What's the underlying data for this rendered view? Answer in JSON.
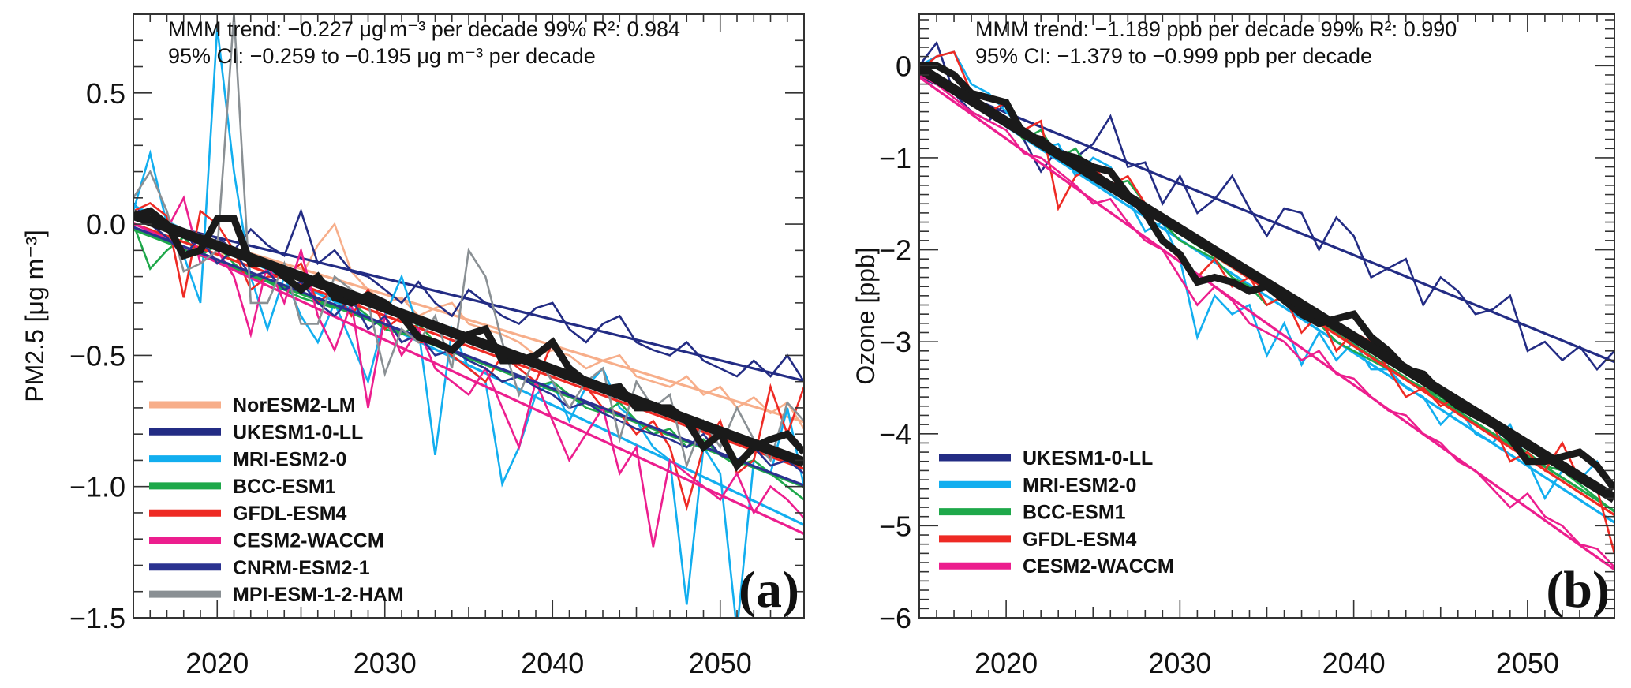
{
  "chart_data": [
    {
      "type": "line",
      "panel_label": "(a)",
      "ylabel": "PM2.5 [μg m⁻³]",
      "xlabel": "",
      "xlim": [
        2015,
        2055
      ],
      "ylim": [
        -1.5,
        0.8
      ],
      "xticks": [
        2020,
        2030,
        2040,
        2050
      ],
      "xtick_labels": [
        "2020",
        "2030",
        "2040",
        "2050"
      ],
      "yticks": [
        0.5,
        0.0,
        -0.5,
        -1.0,
        -1.5
      ],
      "ytick_labels": [
        "0.5",
        "0.0",
        "−0.5",
        "−1.0",
        "−1.5"
      ],
      "legend_position": "bottom-left",
      "annotation": {
        "trend_label": "MMM  trend:",
        "trend": "−0.227",
        "unit": "μg m⁻³",
        "per_decade": "per decade",
        "significance": "99%",
        "r2_label": "R²:",
        "r2": "0.984",
        "ci_label": "95% CI:",
        "ci_low": "−0.259",
        "to": "to",
        "ci_high": "−0.195"
      },
      "start_year": 2015,
      "series": [
        {
          "name": "NorESM2-LM",
          "color": "#F7AE8A",
          "values": [
            0.05,
            0.03,
            -0.02,
            -0.1,
            -0.08,
            -0.12,
            -0.1,
            -0.15,
            -0.13,
            -0.18,
            -0.2,
            -0.08,
            0.0,
            -0.18,
            -0.25,
            -0.3,
            -0.28,
            -0.35,
            -0.32,
            -0.3,
            -0.38,
            -0.4,
            -0.42,
            -0.45,
            -0.5,
            -0.48,
            -0.5,
            -0.55,
            -0.52,
            -0.5,
            -0.58,
            -0.6,
            -0.62,
            -0.58,
            -0.65,
            -0.62,
            -0.7,
            -0.66,
            -0.72,
            -0.68,
            -0.78
          ]
        },
        {
          "name": "UKESM1-0-LL",
          "color": "#232C84",
          "values": [
            0.08,
            0.0,
            -0.05,
            -0.02,
            -0.12,
            -0.05,
            -0.1,
            -0.02,
            -0.08,
            -0.12,
            0.05,
            -0.15,
            -0.1,
            -0.18,
            -0.2,
            -0.25,
            -0.3,
            -0.22,
            -0.3,
            -0.35,
            -0.25,
            -0.3,
            -0.35,
            -0.38,
            -0.32,
            -0.3,
            -0.4,
            -0.45,
            -0.38,
            -0.35,
            -0.45,
            -0.48,
            -0.5,
            -0.45,
            -0.52,
            -0.55,
            -0.58,
            -0.52,
            -0.58,
            -0.5,
            -0.6
          ]
        },
        {
          "name": "MRI-ESM2-0",
          "color": "#12AEEF",
          "values": [
            0.05,
            0.27,
            0.0,
            -0.12,
            -0.3,
            0.75,
            0.2,
            -0.2,
            -0.4,
            -0.2,
            -0.35,
            -0.45,
            -0.3,
            -0.45,
            -0.6,
            -0.35,
            -0.2,
            -0.4,
            -0.88,
            -0.4,
            -0.55,
            -0.6,
            -0.99,
            -0.85,
            -0.65,
            -0.6,
            -0.75,
            -0.62,
            -0.55,
            -0.7,
            -0.75,
            -0.85,
            -0.9,
            -1.45,
            -0.85,
            -0.95,
            -1.55,
            -0.9,
            -0.95,
            -0.7,
            -1.0
          ]
        },
        {
          "name": "BCC-ESM1",
          "color": "#1EA84A",
          "values": [
            0.0,
            -0.17,
            -0.1,
            -0.05,
            -0.12,
            -0.08,
            -0.15,
            -0.2,
            -0.22,
            -0.25,
            -0.28,
            -0.3,
            -0.32,
            -0.3,
            -0.35,
            -0.4,
            -0.42,
            -0.38,
            -0.45,
            -0.48,
            -0.52,
            -0.55,
            -0.6,
            -0.58,
            -0.62,
            -0.6,
            -0.65,
            -0.7,
            -0.72,
            -0.68,
            -0.75,
            -0.8,
            -0.78,
            -0.85,
            -0.82,
            -0.88,
            -0.92,
            -0.9,
            -0.95,
            -1.0,
            -1.05
          ]
        },
        {
          "name": "GFDL-ESM4",
          "color": "#EE2A24",
          "values": [
            0.05,
            0.08,
            0.03,
            -0.28,
            0.05,
            0.0,
            -0.1,
            -0.25,
            -0.2,
            -0.2,
            -0.15,
            -0.3,
            -0.25,
            -0.35,
            -0.25,
            -0.4,
            -0.35,
            -0.45,
            -0.45,
            -0.5,
            -0.55,
            -0.6,
            -0.5,
            -0.55,
            -0.6,
            -0.45,
            -0.55,
            -0.62,
            -0.7,
            -0.72,
            -0.8,
            -0.75,
            -0.85,
            -1.08,
            -0.85,
            -0.75,
            -0.95,
            -0.9,
            -0.62,
            -0.8,
            -0.62
          ]
        },
        {
          "name": "CESM2-WACCM",
          "color": "#EC1E8E",
          "values": [
            0.03,
            0.05,
            -0.02,
            0.1,
            -0.15,
            -0.1,
            -0.2,
            -0.42,
            -0.15,
            -0.3,
            -0.1,
            -0.35,
            -0.48,
            -0.3,
            -0.7,
            -0.35,
            -0.5,
            -0.4,
            -0.55,
            -0.6,
            -0.65,
            -0.55,
            -0.7,
            -0.85,
            -0.6,
            -0.75,
            -0.9,
            -0.8,
            -0.7,
            -0.95,
            -0.85,
            -1.23,
            -0.9,
            -0.95,
            -1.0,
            -1.05,
            -0.95,
            -1.1,
            -1.0,
            -1.05,
            -1.12
          ]
        },
        {
          "name": "CNRM-ESM2-1",
          "color": "#2A3290",
          "values": [
            0.02,
            0.0,
            -0.05,
            -0.12,
            -0.05,
            -0.15,
            -0.1,
            -0.2,
            -0.18,
            -0.25,
            -0.22,
            -0.3,
            -0.35,
            -0.28,
            -0.4,
            -0.35,
            -0.45,
            -0.42,
            -0.5,
            -0.48,
            -0.52,
            -0.55,
            -0.6,
            -0.58,
            -0.62,
            -0.65,
            -0.7,
            -0.68,
            -0.72,
            -0.75,
            -0.78,
            -0.8,
            -0.82,
            -0.85,
            -0.8,
            -0.88,
            -0.9,
            -0.85,
            -0.92,
            -0.9,
            -0.95
          ]
        },
        {
          "name": "MPI-ESM-1-2-HAM",
          "color": "#8A9094",
          "values": [
            0.1,
            0.2,
            0.05,
            -0.18,
            -0.15,
            -0.1,
            0.8,
            -0.3,
            -0.3,
            -0.15,
            -0.38,
            -0.38,
            -0.2,
            -0.25,
            -0.3,
            -0.57,
            -0.4,
            -0.45,
            -0.35,
            -0.55,
            -0.1,
            -0.2,
            -0.45,
            -0.65,
            -0.5,
            -0.6,
            -0.7,
            -0.6,
            -0.55,
            -0.82,
            -0.6,
            -0.7,
            -0.65,
            -0.92,
            -0.75,
            -0.85,
            -0.7,
            -0.82,
            -0.9,
            -0.68,
            -0.75
          ]
        }
      ],
      "mmm": {
        "name": "MMM",
        "color": "#1A1A1A",
        "values": [
          0.03,
          0.05,
          0.0,
          -0.12,
          -0.1,
          0.02,
          0.02,
          -0.15,
          -0.15,
          -0.2,
          -0.25,
          -0.2,
          -0.28,
          -0.3,
          -0.27,
          -0.3,
          -0.35,
          -0.43,
          -0.45,
          -0.48,
          -0.42,
          -0.4,
          -0.52,
          -0.52,
          -0.5,
          -0.45,
          -0.55,
          -0.6,
          -0.63,
          -0.62,
          -0.7,
          -0.7,
          -0.7,
          -0.75,
          -0.85,
          -0.8,
          -0.92,
          -0.85,
          -0.82,
          -0.8,
          -0.87
        ]
      }
    },
    {
      "type": "line",
      "panel_label": "(b)",
      "ylabel": "Ozone [ppb]",
      "xlabel": "",
      "xlim": [
        2015,
        2055
      ],
      "ylim": [
        -6,
        0.56
      ],
      "xticks": [
        2020,
        2030,
        2040,
        2050
      ],
      "xtick_labels": [
        "2020",
        "2030",
        "2040",
        "2050"
      ],
      "yticks": [
        0,
        -1,
        -2,
        -3,
        -4,
        -5,
        -6
      ],
      "ytick_labels": [
        "0",
        "−1",
        "−2",
        "−3",
        "−4",
        "−5",
        "−6"
      ],
      "legend_position": "bottom-left",
      "annotation": {
        "trend_label": "MMM  trend:",
        "trend": "−1.189",
        "unit": "ppb",
        "per_decade": "per decade",
        "significance": "99%",
        "r2_label": "R²:",
        "r2": "0.990",
        "ci_label": "95% CI:",
        "ci_low": "−1.379",
        "to": "to",
        "ci_high": "−0.999"
      },
      "start_year": 2015,
      "series": [
        {
          "name": "UKESM1-0-LL",
          "color": "#232C84",
          "values": [
            0,
            0.25,
            -0.3,
            -0.5,
            -0.6,
            -0.4,
            -0.8,
            -1.15,
            -0.9,
            -1.0,
            -0.85,
            -0.55,
            -1.1,
            -1.05,
            -1.5,
            -1.2,
            -1.6,
            -1.45,
            -1.2,
            -1.55,
            -1.85,
            -1.55,
            -1.6,
            -2.0,
            -1.65,
            -1.85,
            -2.3,
            -2.2,
            -2.1,
            -2.6,
            -2.3,
            -2.45,
            -2.7,
            -2.65,
            -2.5,
            -3.1,
            -3.0,
            -3.2,
            -3.05,
            -3.3,
            -3.1
          ]
        },
        {
          "name": "MRI-ESM2-0",
          "color": "#12AEEF",
          "values": [
            0,
            0.1,
            0.15,
            -0.2,
            -0.3,
            -0.5,
            -0.7,
            -0.9,
            -0.85,
            -1.2,
            -1.0,
            -1.1,
            -1.45,
            -1.8,
            -1.7,
            -2.1,
            -2.95,
            -2.5,
            -2.7,
            -2.6,
            -3.15,
            -2.8,
            -3.25,
            -2.9,
            -3.2,
            -3.0,
            -3.3,
            -3.3,
            -3.5,
            -3.6,
            -3.9,
            -3.7,
            -4.0,
            -4.1,
            -3.9,
            -4.3,
            -4.7,
            -4.4,
            -4.5,
            -4.3,
            -4.6
          ]
        },
        {
          "name": "BCC-ESM1",
          "color": "#1EA84A",
          "values": [
            -0.1,
            -0.2,
            -0.3,
            -0.4,
            -0.5,
            -0.6,
            -0.8,
            -0.7,
            -1.0,
            -0.9,
            -1.2,
            -1.3,
            -1.25,
            -1.5,
            -1.7,
            -1.9,
            -2.0,
            -2.1,
            -2.3,
            -2.4,
            -2.6,
            -2.5,
            -2.7,
            -2.8,
            -3.0,
            -3.1,
            -3.2,
            -3.3,
            -3.4,
            -3.5,
            -3.6,
            -3.75,
            -3.9,
            -4.0,
            -4.1,
            -4.2,
            -4.35,
            -4.4,
            -4.55,
            -4.7,
            -4.85
          ]
        },
        {
          "name": "GFDL-ESM4",
          "color": "#EE2A24",
          "values": [
            -0.05,
            0.1,
            0.15,
            -0.3,
            -0.5,
            -0.4,
            -0.7,
            -0.6,
            -1.55,
            -1.2,
            -1.1,
            -1.3,
            -1.2,
            -1.5,
            -1.9,
            -2.1,
            -2.3,
            -2.1,
            -2.4,
            -2.3,
            -2.6,
            -2.5,
            -2.9,
            -2.7,
            -3.1,
            -2.9,
            -3.0,
            -3.3,
            -3.6,
            -3.5,
            -3.7,
            -3.6,
            -3.8,
            -3.9,
            -4.3,
            -4.2,
            -4.4,
            -4.1,
            -4.5,
            -4.6,
            -5.3
          ]
        },
        {
          "name": "CESM2-WACCM",
          "color": "#EC1E8E",
          "values": [
            -0.1,
            -0.2,
            -0.35,
            -0.5,
            -0.6,
            -0.7,
            -0.95,
            -1.0,
            -1.15,
            -1.3,
            -1.5,
            -1.45,
            -1.7,
            -1.9,
            -2.0,
            -2.3,
            -2.6,
            -2.4,
            -2.55,
            -2.8,
            -2.9,
            -3.0,
            -3.2,
            -3.1,
            -3.35,
            -3.4,
            -3.6,
            -3.75,
            -3.8,
            -4.0,
            -4.1,
            -4.3,
            -4.4,
            -4.6,
            -4.8,
            -4.65,
            -4.9,
            -5.0,
            -5.2,
            -5.25,
            -5.45
          ]
        }
      ],
      "mmm": {
        "name": "MMM",
        "color": "#1A1A1A",
        "values": [
          0,
          0.0,
          -0.1,
          -0.3,
          -0.35,
          -0.4,
          -0.75,
          -0.8,
          -0.95,
          -1.0,
          -1.1,
          -1.15,
          -1.4,
          -1.6,
          -1.9,
          -2.05,
          -2.35,
          -2.3,
          -2.35,
          -2.45,
          -2.4,
          -2.55,
          -2.7,
          -2.8,
          -2.75,
          -2.7,
          -2.95,
          -3.1,
          -3.3,
          -3.35,
          -3.55,
          -3.7,
          -3.8,
          -3.9,
          -4.05,
          -4.3,
          -4.3,
          -4.25,
          -4.2,
          -4.35,
          -4.6
        ]
      }
    }
  ]
}
